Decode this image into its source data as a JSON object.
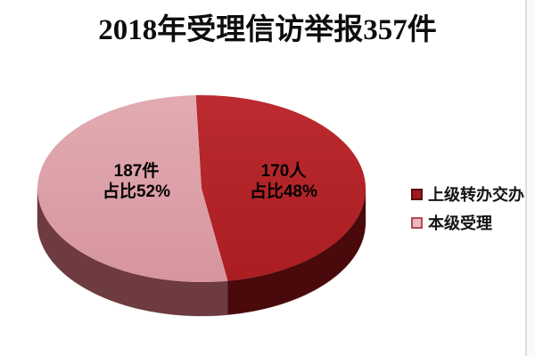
{
  "title": "2018年受理信访举报357件",
  "chart_data": {
    "type": "pie",
    "style": "3d",
    "title": "2018年受理信访举报357件",
    "total": 357,
    "total_unit": "件",
    "legend_position": "right",
    "start_angle_deg": -92,
    "clockwise": true,
    "slices": [
      {
        "name": "上级转办交办",
        "value": 170,
        "unit": "人",
        "percent": 48,
        "label_line1": "170人",
        "label_line2": "占比48%",
        "top_stops": [
          "#bb2b2f",
          "#aa1d21"
        ],
        "side_stops": [
          "#5a0e10",
          "#8a191d",
          "#4a090b"
        ],
        "marker_fill": "#a3191d",
        "marker_border": "#5c0d0f"
      },
      {
        "name": "本级受理",
        "value": 187,
        "unit": "件",
        "percent": 52,
        "label_line1": "187件",
        "label_line2": "占比52%",
        "top_stops": [
          "#e2abb2",
          "#d7959e"
        ],
        "side_stops": [
          "#a86a6f",
          "#8a5459",
          "#6e3b40"
        ],
        "marker_fill": "#e9b8be",
        "marker_border": "#b04b52"
      }
    ],
    "text_color": "#000000",
    "background_color": "#ffffff"
  }
}
